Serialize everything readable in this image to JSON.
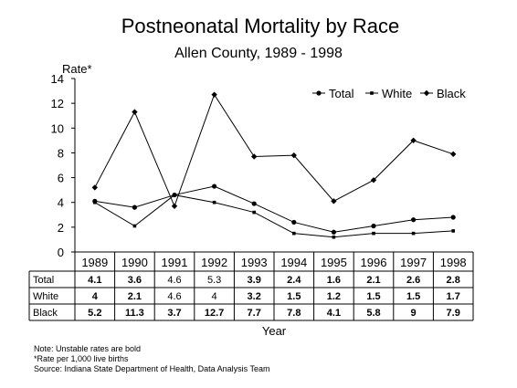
{
  "chart_data": {
    "type": "line",
    "title": "Postneonatal Mortality by Race",
    "subtitle": "Allen County, 1989 - 1998",
    "ylabel": "Rate*",
    "xlabel": "Year",
    "ylim": [
      0,
      14
    ],
    "yticks": [
      0,
      2,
      4,
      6,
      8,
      10,
      12,
      14
    ],
    "grid": false,
    "legend_position": "top-right",
    "categories": [
      "1989",
      "1990",
      "1991",
      "1992",
      "1993",
      "1994",
      "1995",
      "1996",
      "1997",
      "1998"
    ],
    "series": [
      {
        "name": "Total",
        "marker": "circle",
        "values": [
          4.1,
          3.6,
          4.6,
          5.3,
          3.9,
          2.4,
          1.6,
          2.1,
          2.6,
          2.8
        ],
        "labels": [
          "4.1",
          "3.6",
          "4.6",
          "5.3",
          "3.9",
          "2.4",
          "1.6",
          "2.1",
          "2.6",
          "2.8"
        ],
        "bold": [
          true,
          true,
          false,
          false,
          true,
          true,
          true,
          true,
          true,
          true
        ]
      },
      {
        "name": "White",
        "marker": "square",
        "values": [
          4,
          2.1,
          4.6,
          4,
          3.2,
          1.5,
          1.2,
          1.5,
          1.5,
          1.7
        ],
        "labels": [
          "4",
          "2.1",
          "4.6",
          "4",
          "3.2",
          "1.5",
          "1.2",
          "1.5",
          "1.5",
          "1.7"
        ],
        "bold": [
          true,
          true,
          false,
          false,
          true,
          true,
          true,
          true,
          true,
          true
        ]
      },
      {
        "name": "Black",
        "marker": "diamond",
        "values": [
          5.2,
          11.3,
          3.7,
          12.7,
          7.7,
          7.8,
          4.1,
          5.8,
          9,
          7.9
        ],
        "labels": [
          "5.2",
          "11.3",
          "3.7",
          "12.7",
          "7.7",
          "7.8",
          "4.1",
          "5.8",
          "9",
          "7.9"
        ],
        "bold": [
          true,
          true,
          true,
          true,
          true,
          true,
          true,
          true,
          true,
          true
        ]
      }
    ],
    "notes": [
      "Note:  Unstable rates are bold",
      "*Rate per 1,000 live births",
      "Source:  Indiana State Department of Health, Data Analysis Team"
    ]
  }
}
